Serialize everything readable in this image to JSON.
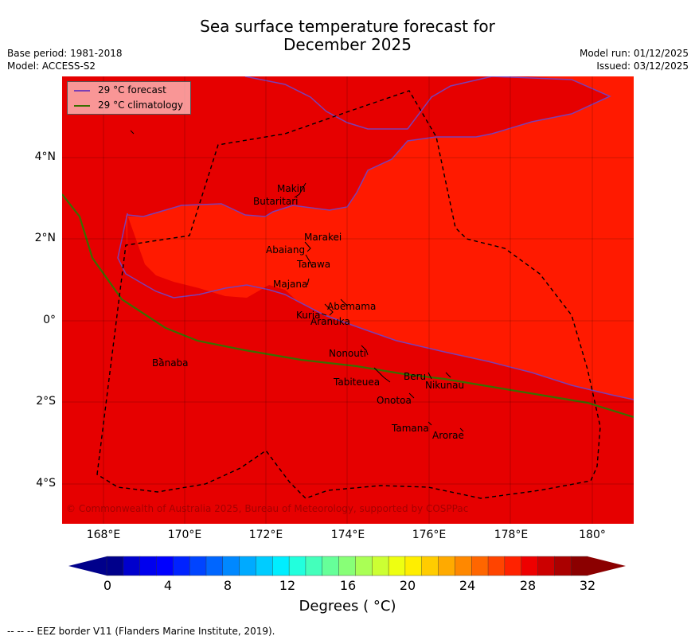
{
  "title_line1": "Sea surface temperature forecast for",
  "title_line2": "December 2025",
  "base_period": "Base period: 1981-2018",
  "model": "Model: ACCESS-S2",
  "model_run": "Model run: 01/12/2025",
  "issued": "Issued: 03/12/2025",
  "legend": {
    "forecast": {
      "label": "29 °C  forecast",
      "color": "#7b3fb5"
    },
    "climatology": {
      "label": "29 °C  climatology",
      "color": "#3a6e00"
    }
  },
  "y_ticks": [
    "4°N",
    "2°N",
    "0°",
    "2°S",
    "4°S"
  ],
  "x_ticks": [
    "168°E",
    "170°E",
    "172°E",
    "174°E",
    "176°E",
    "178°E",
    "180°"
  ],
  "places": [
    "Makin",
    "Butaritari",
    "Marakei",
    "Abaiang",
    "Tarawa",
    "Majana",
    "Abemama",
    "Kuria",
    "Aranuka",
    "Nonouti",
    "Banaba",
    "Beru",
    "Tabiteuea",
    "Nikunau",
    "Onotoa",
    "Tamana",
    "Arorae"
  ],
  "copyright": "© Commonwealth of Australia 2025, Bureau of Meteorology, supported by COSPPac",
  "colorbar": {
    "ticks": [
      "0",
      "4",
      "8",
      "12",
      "16",
      "20",
      "24",
      "28",
      "32"
    ],
    "label": "Degrees ( °C)",
    "colors": [
      "#00008b",
      "#0000cd",
      "#0000ee",
      "#0000ff",
      "#0022ff",
      "#0044ff",
      "#0066ff",
      "#0088ff",
      "#00aaff",
      "#00ccff",
      "#00eeff",
      "#22ffdd",
      "#44ffbb",
      "#66ff99",
      "#88ff77",
      "#aaff55",
      "#ccff33",
      "#eeff11",
      "#ffee00",
      "#ffcc00",
      "#ffaa00",
      "#ff8800",
      "#ff6600",
      "#ff4400",
      "#ff2200",
      "#ee0000",
      "#cc0000",
      "#aa0000",
      "#8b0000"
    ],
    "under_color": "#00008b",
    "over_color": "#8b0000"
  },
  "colors": {
    "warm_region": "#e60000",
    "cool_region": "#ff1a00"
  },
  "footer": "--  --  -- EEZ border V11 (Flanders Marine Institute, 2019)."
}
